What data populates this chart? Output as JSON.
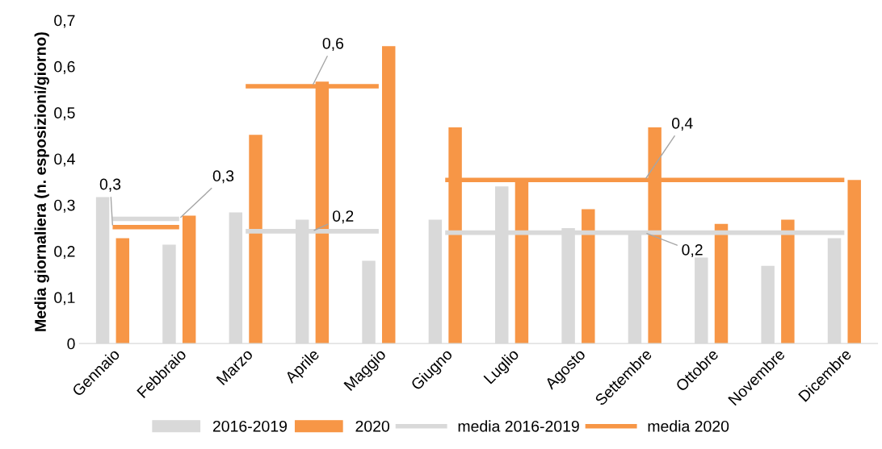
{
  "chart_data": {
    "type": "bar",
    "ylabel": "Media giornaliera (n. esposizioni/giorno)",
    "categories": [
      "Gennaio",
      "Febbraio",
      "Marzo",
      "Aprile",
      "Maggio",
      "Giugno",
      "Luglio",
      "Agosto",
      "Settembre",
      "Ottobre",
      "Novembre",
      "Dicembre"
    ],
    "series": [
      {
        "name": "2016-2019",
        "color": "#d9d9d9",
        "values": [
          0.317,
          0.214,
          0.284,
          0.268,
          0.179,
          0.268,
          0.34,
          0.25,
          0.24,
          0.186,
          0.168,
          0.228
        ]
      },
      {
        "name": "2020",
        "color": "#f79646",
        "values": [
          0.228,
          0.277,
          0.452,
          0.567,
          0.644,
          0.468,
          0.354,
          0.291,
          0.468,
          0.259,
          0.268,
          0.354
        ]
      },
      {
        "name": "media 2016-2019",
        "type": "line",
        "color": "#d9d9d9",
        "values": [
          0.27,
          0.27,
          null,
          null,
          null,
          null,
          null,
          null,
          null,
          null,
          null,
          null
        ]
      },
      {
        "type": "line",
        "color": "#d9d9d9",
        "values": [
          null,
          null,
          0.243,
          0.243,
          0.243,
          null,
          null,
          null,
          null,
          null,
          null,
          null
        ]
      },
      {
        "type": "line",
        "color": "#d9d9d9",
        "values": [
          null,
          null,
          null,
          null,
          null,
          0.24,
          0.24,
          0.24,
          0.24,
          0.24,
          0.24,
          0.24
        ]
      },
      {
        "name": "media 2020",
        "type": "line",
        "color": "#f79646",
        "values": [
          0.252,
          0.252,
          null,
          null,
          null,
          null,
          null,
          null,
          null,
          null,
          null,
          null
        ]
      },
      {
        "type": "line",
        "color": "#f79646",
        "values": [
          null,
          null,
          0.557,
          0.557,
          0.557,
          null,
          null,
          null,
          null,
          null,
          null,
          null
        ]
      },
      {
        "type": "line",
        "color": "#f79646",
        "values": [
          null,
          null,
          null,
          null,
          null,
          0.354,
          0.354,
          0.354,
          0.354,
          0.354,
          0.354,
          0.354
        ]
      }
    ],
    "annotations": [
      {
        "text": "0,3",
        "x": "Gennaio",
        "y": 0.252
      },
      {
        "text": "0,3",
        "x": "Febbraio",
        "y": 0.27
      },
      {
        "text": "0,6",
        "x": "Aprile",
        "y": 0.557
      },
      {
        "text": "0,2",
        "x": "Aprile",
        "y": 0.243
      },
      {
        "text": "0,4",
        "x": "Settembre",
        "y": 0.354
      },
      {
        "text": "0,2",
        "x": "Settembre",
        "y": 0.24
      }
    ],
    "ylim": [
      0,
      0.7
    ],
    "yticks": [
      {
        "value": 0,
        "label": "0"
      },
      {
        "value": 0.1,
        "label": "0,1"
      },
      {
        "value": 0.2,
        "label": "0,2"
      },
      {
        "value": 0.3,
        "label": "0,3"
      },
      {
        "value": 0.4,
        "label": "0,4"
      },
      {
        "value": 0.5,
        "label": "0,5"
      },
      {
        "value": 0.6,
        "label": "0,6"
      },
      {
        "value": 0.7,
        "label": "0,7"
      }
    ],
    "grid": false,
    "legend": "bottom"
  }
}
